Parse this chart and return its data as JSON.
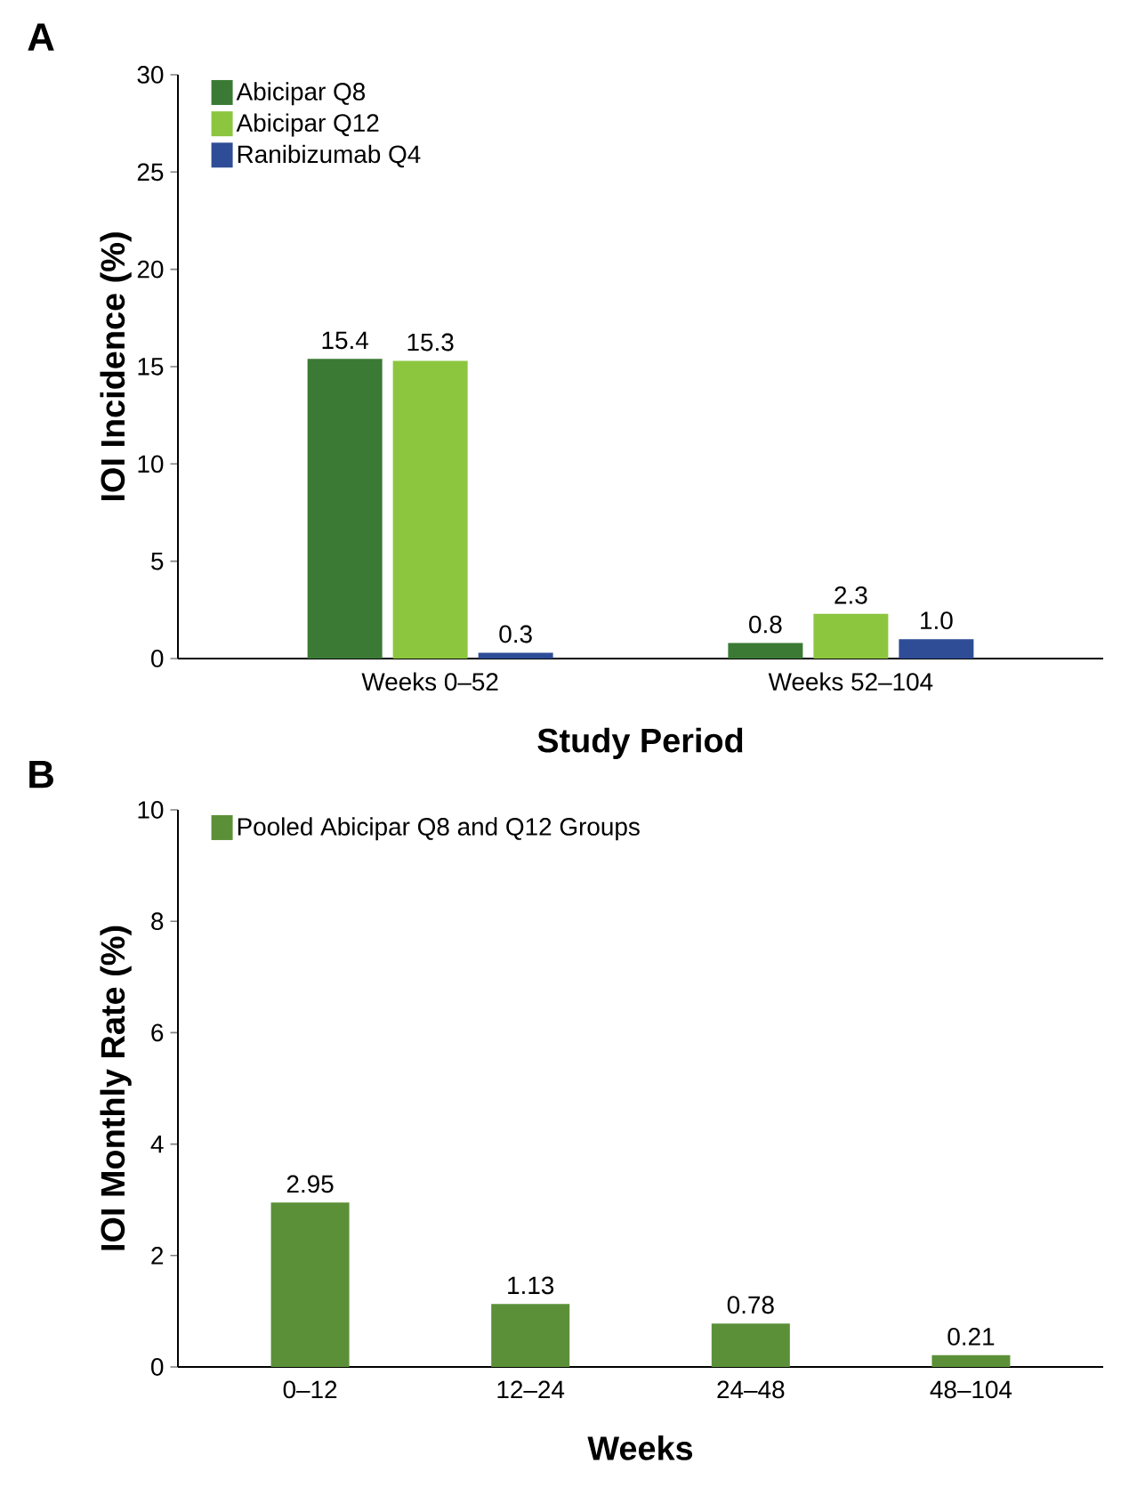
{
  "chart_data": [
    {
      "type": "bar",
      "title": "A",
      "xlabel": "Study Period",
      "ylabel": "IOI Incidence (%)",
      "categories": [
        "Weeks 0–52",
        "Weeks 52–104"
      ],
      "series": [
        {
          "name": "Abicipar Q8",
          "color": "#3b7a35",
          "values": [
            15.4,
            0.8
          ]
        },
        {
          "name": "Abicipar Q12",
          "color": "#8cc63f",
          "values": [
            15.3,
            2.3
          ]
        },
        {
          "name": "Ranibizumab Q4",
          "color": "#2e4d96",
          "values": [
            0.3,
            1.0
          ],
          "value_labels": [
            "0.3",
            "1.0"
          ]
        }
      ],
      "ylim": [
        0,
        30
      ],
      "yticks": [
        0,
        5,
        10,
        15,
        20,
        25,
        30
      ],
      "legend": "top left",
      "data_labels": true
    },
    {
      "type": "bar",
      "title": "B",
      "xlabel": "Weeks",
      "ylabel": "IOI Monthly Rate (%)",
      "categories": [
        "0–12",
        "12–24",
        "24–48",
        "48–104"
      ],
      "series": [
        {
          "name": "Pooled Abicipar Q8 and Q12 Groups",
          "color": "#5b9038",
          "values": [
            2.95,
            1.13,
            0.78,
            0.21
          ]
        }
      ],
      "ylim": [
        0,
        10
      ],
      "yticks": [
        0,
        2,
        4,
        6,
        8,
        10
      ],
      "legend": "top left",
      "data_labels": true
    }
  ]
}
